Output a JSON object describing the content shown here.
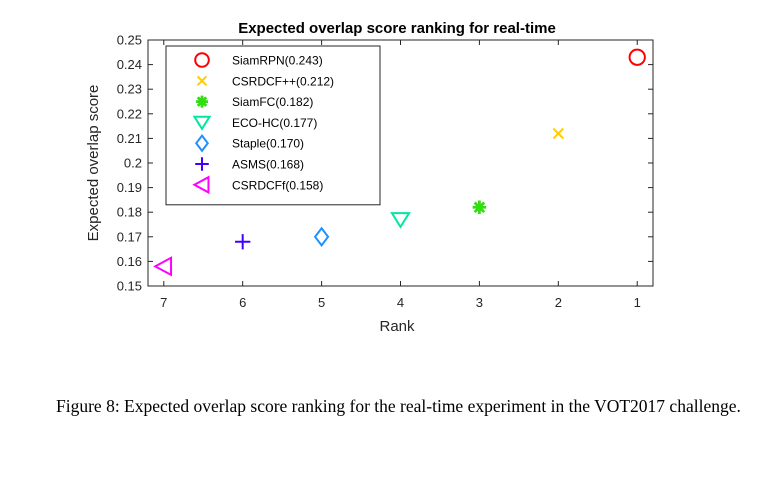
{
  "caption": "Figure 8: Expected overlap score ranking for the real-time experiment in the VOT2017 challenge.",
  "chart_data": {
    "type": "scatter",
    "title": "Expected overlap score ranking for real-time",
    "xlabel": "Rank",
    "ylabel": "Expected overlap score",
    "x_reversed": true,
    "xlim": [
      0.8,
      7.2
    ],
    "ylim": [
      0.15,
      0.25
    ],
    "xticks": [
      7,
      6,
      5,
      4,
      3,
      2,
      1
    ],
    "yticks": [
      0.15,
      0.16,
      0.17,
      0.18,
      0.19,
      0.2,
      0.21,
      0.22,
      0.23,
      0.24,
      0.25
    ],
    "ytick_labels": [
      "0.15",
      "0.16",
      "0.17",
      "0.18",
      "0.19",
      "0.2",
      "0.21",
      "0.22",
      "0.23",
      "0.24",
      "0.25"
    ],
    "grid": false,
    "legend_placement": "top-left",
    "series": [
      {
        "name": "SiamRPN(0.243)",
        "rank": 1,
        "score": 0.243,
        "marker": "circle",
        "color": "#ff0000"
      },
      {
        "name": "CSRDCF++(0.212)",
        "rank": 2,
        "score": 0.212,
        "marker": "x",
        "color": "#ffcc00"
      },
      {
        "name": "SiamFC(0.182)",
        "rank": 3,
        "score": 0.182,
        "marker": "asterisk",
        "color": "#33dd11"
      },
      {
        "name": "ECO-HC(0.177)",
        "rank": 4,
        "score": 0.177,
        "marker": "triangle-down",
        "color": "#00e8a0"
      },
      {
        "name": "Staple(0.170)",
        "rank": 5,
        "score": 0.17,
        "marker": "diamond",
        "color": "#1e90ff"
      },
      {
        "name": "ASMS(0.168)",
        "rank": 6,
        "score": 0.168,
        "marker": "plus",
        "color": "#4400ff"
      },
      {
        "name": "CSRDCFf(0.158)",
        "rank": 7,
        "score": 0.158,
        "marker": "triangle-left",
        "color": "#ff00ff"
      }
    ]
  }
}
